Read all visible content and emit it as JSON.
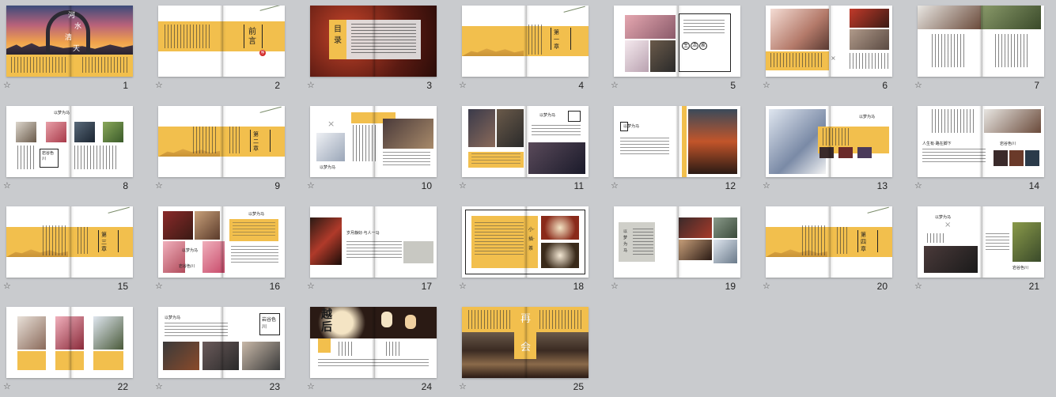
{
  "slides": [
    {
      "number": "1",
      "title_chars": [
        "河",
        "水",
        "清",
        "天"
      ]
    },
    {
      "number": "2",
      "title": "前言",
      "seal": "序"
    },
    {
      "number": "3",
      "title": "目录",
      "items": [
        "一",
        "二",
        "三",
        "四"
      ]
    },
    {
      "number": "4",
      "chapter": "第一章"
    },
    {
      "number": "5",
      "labels": [
        "生",
        "活",
        "家"
      ]
    },
    {
      "number": "6"
    },
    {
      "number": "7"
    },
    {
      "number": "8",
      "heading": "以梦为马",
      "caption": "岩谷色川"
    },
    {
      "number": "9",
      "chapter": "第二章"
    },
    {
      "number": "10",
      "heading": "以梦为马"
    },
    {
      "number": "11",
      "heading": "以梦为马"
    },
    {
      "number": "12",
      "heading": "以梦为马"
    },
    {
      "number": "13",
      "heading": "以梦为马"
    },
    {
      "number": "14",
      "heading": "人生有·路在脚下",
      "caption": "岩谷色川"
    },
    {
      "number": "15",
      "chapter": "第三章"
    },
    {
      "number": "16",
      "heading": "以梦为马",
      "caption": "岩谷色川"
    },
    {
      "number": "17",
      "heading": "岁月静好·与人一马"
    },
    {
      "number": "18",
      "title": "小·插·茶"
    },
    {
      "number": "19",
      "heading": "以梦为马"
    },
    {
      "number": "20",
      "chapter": "第四章"
    },
    {
      "number": "21",
      "heading": "以梦为马",
      "caption": "岩谷色川"
    },
    {
      "number": "22"
    },
    {
      "number": "23",
      "heading": "以梦为马",
      "caption": "岩谷色川"
    },
    {
      "number": "24",
      "title": "越后"
    },
    {
      "number": "25",
      "title": [
        "再",
        "会"
      ]
    }
  ],
  "icons": {
    "star": "star-icon"
  },
  "colors": {
    "accent": "#f2bf4d",
    "background": "#c9cbce"
  }
}
